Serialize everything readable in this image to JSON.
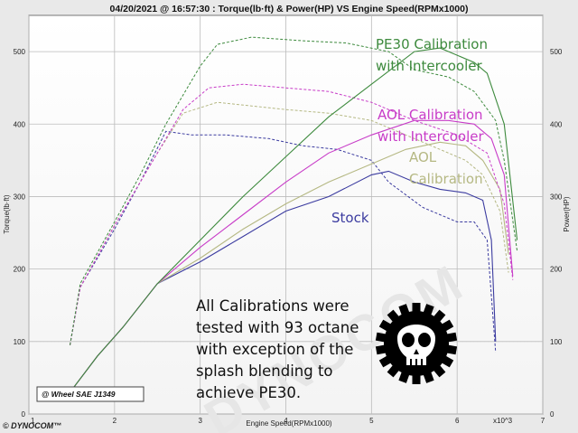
{
  "chart_data": {
    "type": "line",
    "title": "04/20/2021 @ 16:57:30 : Torque(lb·ft) & Power(HP) VS Engine Speed(RPMx1000)",
    "xlabel": "Engine Speed(RPMx1000)",
    "x_unit_label": "x10^3",
    "ylabel_left": "Torque(lb·ft)",
    "ylabel_right": "Power(HP)",
    "xlim": [
      1,
      7
    ],
    "ylim": [
      0,
      550
    ],
    "x_ticks": [
      "1",
      "2",
      "3",
      "4",
      "5",
      "6",
      "7"
    ],
    "y_ticks": [
      "0",
      "100",
      "200",
      "300",
      "400",
      "500"
    ],
    "grid": true,
    "series": [
      {
        "name": "PE30 Calibration with Intercooler",
        "color": "#3d8a3d",
        "label_lines": [
          "PE30 Calibration",
          "with Intercooler"
        ],
        "power": [
          [
            1.48,
            30
          ],
          [
            1.8,
            80
          ],
          [
            2.1,
            120
          ],
          [
            2.5,
            180
          ],
          [
            3.0,
            240
          ],
          [
            3.5,
            300
          ],
          [
            4.0,
            355
          ],
          [
            4.5,
            410
          ],
          [
            5.0,
            455
          ],
          [
            5.5,
            500
          ],
          [
            5.8,
            505
          ],
          [
            6.2,
            485
          ],
          [
            6.35,
            470
          ],
          [
            6.55,
            400
          ],
          [
            6.7,
            240
          ]
        ],
        "torque": [
          [
            1.48,
            95
          ],
          [
            1.6,
            180
          ],
          [
            2.0,
            265
          ],
          [
            2.3,
            330
          ],
          [
            2.6,
            400
          ],
          [
            3.0,
            480
          ],
          [
            3.2,
            510
          ],
          [
            3.6,
            520
          ],
          [
            4.2,
            515
          ],
          [
            4.7,
            512
          ],
          [
            5.2,
            500
          ],
          [
            5.5,
            475
          ],
          [
            5.9,
            465
          ],
          [
            6.2,
            445
          ],
          [
            6.45,
            405
          ],
          [
            6.55,
            350
          ],
          [
            6.7,
            225
          ]
        ]
      },
      {
        "name": "AOL Calibration with Intercooler",
        "color": "#c83cc8",
        "label_lines": [
          "AOL Calibration",
          "with Intercooler"
        ],
        "power": [
          [
            1.48,
            30
          ],
          [
            1.8,
            80
          ],
          [
            2.1,
            120
          ],
          [
            2.5,
            180
          ],
          [
            3.0,
            230
          ],
          [
            3.5,
            275
          ],
          [
            4.0,
            320
          ],
          [
            4.5,
            360
          ],
          [
            5.0,
            385
          ],
          [
            5.5,
            405
          ],
          [
            5.9,
            405
          ],
          [
            6.2,
            400
          ],
          [
            6.4,
            380
          ],
          [
            6.55,
            330
          ],
          [
            6.65,
            190
          ]
        ],
        "torque": [
          [
            1.48,
            95
          ],
          [
            1.6,
            175
          ],
          [
            2.0,
            260
          ],
          [
            2.4,
            340
          ],
          [
            2.8,
            420
          ],
          [
            3.1,
            450
          ],
          [
            3.5,
            455
          ],
          [
            4.0,
            450
          ],
          [
            4.5,
            445
          ],
          [
            5.0,
            430
          ],
          [
            5.5,
            405
          ],
          [
            6.0,
            385
          ],
          [
            6.35,
            360
          ],
          [
            6.55,
            290
          ],
          [
            6.65,
            185
          ]
        ]
      },
      {
        "name": "AOL Calibration",
        "color": "#b5b883",
        "label_lines": [
          "AOL",
          "Calibration"
        ],
        "power": [
          [
            1.48,
            30
          ],
          [
            1.8,
            80
          ],
          [
            2.1,
            120
          ],
          [
            2.5,
            180
          ],
          [
            3.0,
            215
          ],
          [
            3.5,
            255
          ],
          [
            4.0,
            290
          ],
          [
            4.5,
            320
          ],
          [
            5.0,
            345
          ],
          [
            5.4,
            365
          ],
          [
            5.8,
            375
          ],
          [
            6.1,
            370
          ],
          [
            6.3,
            350
          ],
          [
            6.5,
            310
          ],
          [
            6.6,
            220
          ]
        ],
        "torque": [
          [
            1.48,
            95
          ],
          [
            1.6,
            175
          ],
          [
            2.0,
            260
          ],
          [
            2.5,
            360
          ],
          [
            2.8,
            415
          ],
          [
            3.2,
            430
          ],
          [
            3.6,
            425
          ],
          [
            4.0,
            420
          ],
          [
            4.5,
            415
          ],
          [
            5.0,
            405
          ],
          [
            5.4,
            385
          ],
          [
            5.8,
            365
          ],
          [
            6.1,
            350
          ],
          [
            6.3,
            330
          ],
          [
            6.5,
            280
          ],
          [
            6.6,
            195
          ]
        ]
      },
      {
        "name": "Stock",
        "color": "#3c3ca0",
        "label_lines": [
          "Stock"
        ],
        "power": [
          [
            1.48,
            30
          ],
          [
            1.8,
            80
          ],
          [
            2.1,
            120
          ],
          [
            2.5,
            180
          ],
          [
            3.0,
            210
          ],
          [
            3.5,
            245
          ],
          [
            4.0,
            280
          ],
          [
            4.5,
            300
          ],
          [
            5.0,
            330
          ],
          [
            5.2,
            335
          ],
          [
            5.5,
            320
          ],
          [
            5.8,
            310
          ],
          [
            6.1,
            305
          ],
          [
            6.3,
            295
          ],
          [
            6.4,
            240
          ],
          [
            6.45,
            100
          ]
        ],
        "torque": [
          [
            1.48,
            95
          ],
          [
            1.6,
            175
          ],
          [
            2.0,
            255
          ],
          [
            2.3,
            320
          ],
          [
            2.6,
            390
          ],
          [
            2.9,
            385
          ],
          [
            3.3,
            385
          ],
          [
            3.8,
            380
          ],
          [
            4.2,
            370
          ],
          [
            4.6,
            365
          ],
          [
            5.0,
            350
          ],
          [
            5.2,
            320
          ],
          [
            5.6,
            285
          ],
          [
            6.0,
            265
          ],
          [
            6.2,
            265
          ],
          [
            6.35,
            240
          ],
          [
            6.45,
            85
          ]
        ]
      }
    ]
  },
  "annotation": {
    "lines": [
      "All Calibrations were",
      "tested with 93 octane",
      "with exception of the",
      "splash blending to",
      "achieve PE30."
    ]
  },
  "wheel_label": "@ Wheel SAE J1349",
  "logo_text": "© DYNOCOM™",
  "watermark_text": "DYNOCOM",
  "skull_icon": "skull-gear-icon",
  "colors": {
    "background": "#e9e9e9",
    "plot_bg": "#ffffff",
    "grid": "#b8b8b8"
  }
}
